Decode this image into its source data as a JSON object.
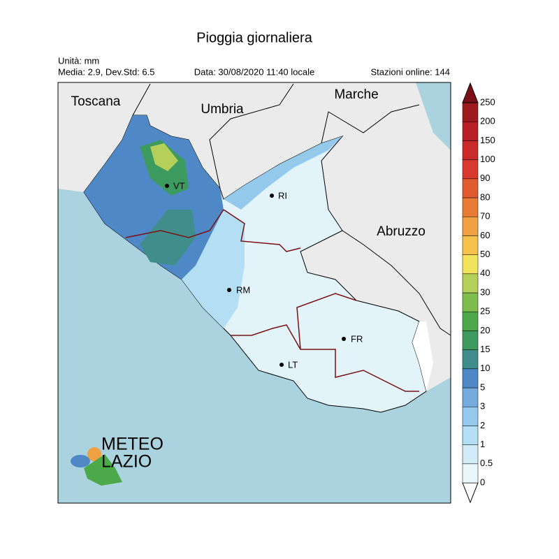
{
  "header": {
    "title": "Pioggia giornaliera",
    "unit": "Unità: mm",
    "stats": "Media: 2.9, Dev.Std: 6.5",
    "date": "Data: 30/08/2020 11:40 locale",
    "stations": "Stazioni online: 144"
  },
  "regions": [
    "Toscana",
    "Umbria",
    "Marche",
    "Abruzzo"
  ],
  "cities": [
    "VT",
    "RI",
    "RM",
    "FR",
    "LT"
  ],
  "logo": {
    "line1": "METEO",
    "line2": "LAZIO"
  },
  "colorbar": {
    "levels": [
      0,
      0.5,
      1,
      2,
      3,
      5,
      10,
      15,
      20,
      25,
      30,
      40,
      50,
      60,
      70,
      80,
      90,
      100,
      150,
      200,
      250
    ],
    "colors": [
      "#ffffff",
      "#eaf6fb",
      "#d2ecf7",
      "#b4def4",
      "#95c9ec",
      "#74abdc",
      "#4f88c6",
      "#3f8e8c",
      "#3d9b5f",
      "#4ba94a",
      "#7dbc4d",
      "#b4cf5a",
      "#f1e35b",
      "#f5c34b",
      "#f0a142",
      "#e87b36",
      "#e15b30",
      "#d8392e",
      "#c92b2a",
      "#b61f25",
      "#9d1a1f",
      "#7b1116"
    ]
  }
}
